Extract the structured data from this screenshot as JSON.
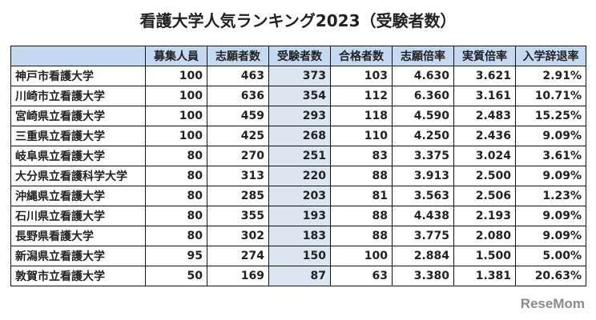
{
  "title": "看護大学人気ランキング2023（受験者数）",
  "headers": [
    "",
    "募集人員",
    "志願者数",
    "受験者数",
    "合格者数",
    "志願倍率",
    "実質倍率",
    "入学辞退率"
  ],
  "rows": [
    [
      "神戸市看護大学",
      "100",
      "463",
      "373",
      "103",
      "4.630",
      "3.621",
      "2.91%"
    ],
    [
      "川崎市立看護大学",
      "100",
      "636",
      "354",
      "112",
      "6.360",
      "3.161",
      "10.71%"
    ],
    [
      "宮崎県立看護大学",
      "100",
      "459",
      "293",
      "118",
      "4.590",
      "2.483",
      "15.25%"
    ],
    [
      "三重県立看護大学",
      "100",
      "425",
      "268",
      "110",
      "4.250",
      "2.436",
      "9.09%"
    ],
    [
      "岐阜県立看護大学",
      "80",
      "270",
      "251",
      "83",
      "3.375",
      "3.024",
      "3.61%"
    ],
    [
      "大分県立看護科学大学",
      "80",
      "313",
      "220",
      "88",
      "3.913",
      "2.500",
      "9.09%"
    ],
    [
      "沖縄県立看護大学",
      "80",
      "285",
      "203",
      "81",
      "3.563",
      "2.506",
      "1.23%"
    ],
    [
      "石川県立看護大学",
      "80",
      "355",
      "193",
      "88",
      "4.438",
      "2.193",
      "9.09%"
    ],
    [
      "長野県看護大学",
      "80",
      "302",
      "183",
      "88",
      "3.775",
      "2.080",
      "9.09%"
    ],
    [
      "新潟県立看護大学",
      "95",
      "274",
      "150",
      "100",
      "2.884",
      "1.500",
      "5.00%"
    ],
    [
      "敦賀市立看護大学",
      "50",
      "169",
      "87",
      "63",
      "3.380",
      "1.381",
      "20.63%"
    ]
  ],
  "logo": "ReseMom"
}
